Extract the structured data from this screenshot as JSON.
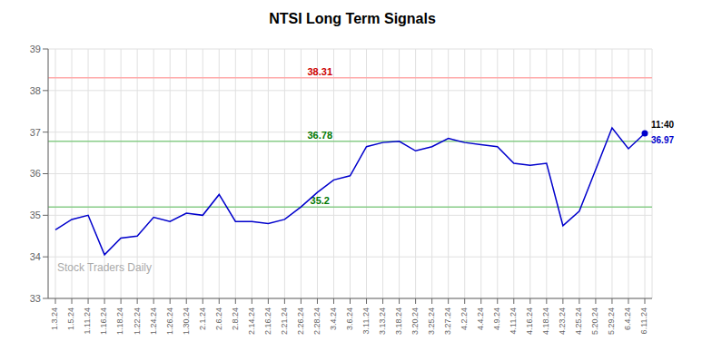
{
  "chart_data": {
    "type": "line",
    "title": "NTSI Long Term Signals",
    "categories": [
      "1.3.24",
      "1.5.24",
      "1.11.24",
      "1.16.24",
      "1.18.24",
      "1.22.24",
      "1.24.24",
      "1.26.24",
      "1.30.24",
      "2.1.24",
      "2.6.24",
      "2.8.24",
      "2.14.24",
      "2.16.24",
      "2.21.24",
      "2.26.24",
      "2.28.24",
      "3.4.24",
      "3.6.24",
      "3.11.24",
      "3.13.24",
      "3.18.24",
      "3.20.24",
      "3.25.24",
      "3.27.24",
      "4.2.24",
      "4.4.24",
      "4.9.24",
      "4.11.24",
      "4.16.24",
      "4.18.24",
      "4.23.24",
      "4.25.24",
      "5.20.24",
      "5.29.24",
      "6.4.24",
      "6.11.24"
    ],
    "values": [
      34.65,
      34.9,
      35.0,
      34.05,
      34.45,
      34.5,
      34.95,
      34.85,
      35.05,
      35.0,
      35.5,
      34.85,
      34.85,
      34.8,
      34.9,
      35.2,
      35.55,
      35.85,
      35.95,
      36.65,
      36.75,
      36.78,
      36.55,
      36.65,
      36.85,
      36.75,
      36.7,
      36.65,
      36.25,
      36.2,
      36.25,
      34.75,
      35.1,
      36.1,
      37.1,
      36.6,
      36.97
    ],
    "color": "#0000cc",
    "ylim": [
      33,
      39
    ],
    "yticks": [
      33,
      34,
      35,
      36,
      37,
      38,
      39
    ],
    "grid": true,
    "reference_lines": [
      {
        "value": 38.31,
        "color": "#ffaaaa",
        "label_color": "#cc0000"
      },
      {
        "value": 36.78,
        "color": "#88cc88",
        "label_color": "#007700"
      },
      {
        "value": 35.2,
        "color": "#88cc88",
        "label_color": "#007700"
      }
    ],
    "annotations": [
      {
        "text": "11:40",
        "color": "#000000"
      },
      {
        "text": "36.97",
        "color": "#0000cc"
      }
    ],
    "watermark": {
      "text": "Stock Traders Daily",
      "color": "#aaaaaa"
    }
  }
}
